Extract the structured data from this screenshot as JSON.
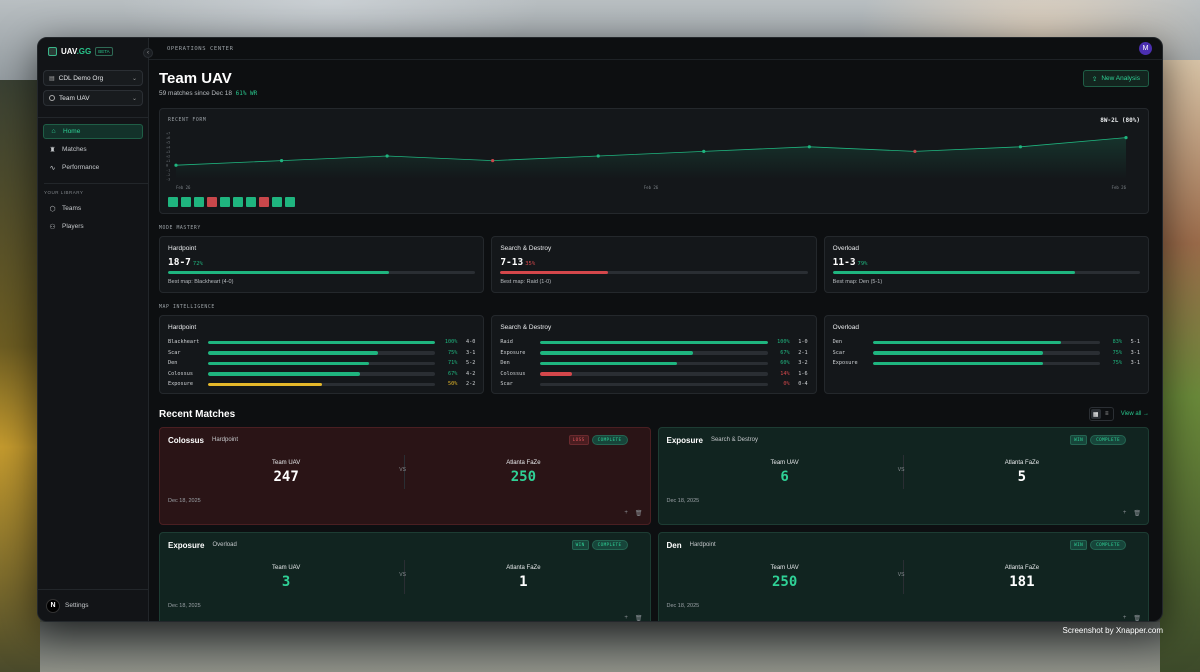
{
  "caption": "Screenshot by Xnapper.com",
  "brand": {
    "name_a": "UAV",
    "name_b": ".GG",
    "beta": "BETA"
  },
  "sidebar": {
    "org_select": "CDL Demo Org",
    "team_select": "Team UAV",
    "nav": [
      {
        "label": "Home",
        "icon": "home-icon"
      },
      {
        "label": "Matches",
        "icon": "trophy-icon"
      },
      {
        "label": "Performance",
        "icon": "pulse-icon"
      }
    ],
    "library_label": "YOUR LIBRARY",
    "library": [
      {
        "label": "Teams",
        "icon": "shield-icon"
      },
      {
        "label": "Players",
        "icon": "users-icon"
      }
    ],
    "settings_label": "Settings",
    "settings_avatar": "N"
  },
  "topbar": {
    "title": "OPERATIONS CENTER",
    "avatar": "M"
  },
  "header": {
    "title": "Team UAV",
    "subtitle": "59 matches since Dec 18",
    "win_rate": "61% WR",
    "new_analysis": "New Analysis"
  },
  "recent_form": {
    "label": "RECENT FORM",
    "record": "8W-2L (80%)",
    "y_ticks": [
      "+7",
      "+6",
      "+5",
      "+4",
      "+3",
      "+2",
      "+1",
      "0",
      "-1",
      "-2",
      "-3"
    ],
    "x_ticks": [
      "Feb 26",
      "Feb 26",
      "Feb 26"
    ],
    "results": [
      "W",
      "W",
      "W",
      "L",
      "W",
      "W",
      "W",
      "L",
      "W",
      "W"
    ],
    "colors": {
      "win": "#1fb57f",
      "loss": "#c9474b"
    }
  },
  "chart_data": {
    "type": "line",
    "title": "",
    "xlabel": "",
    "ylabel": "",
    "x": [
      1,
      2,
      3,
      4,
      5,
      6,
      7,
      8,
      9,
      10
    ],
    "values": [
      0,
      1,
      2,
      1,
      2,
      3,
      4,
      3,
      4,
      6
    ],
    "results": [
      "W",
      "W",
      "W",
      "L",
      "W",
      "W",
      "W",
      "L",
      "W",
      "W"
    ],
    "ylim": [
      -3,
      7
    ],
    "grid": false
  },
  "mode_mastery": {
    "label": "MODE MASTERY",
    "modes": [
      {
        "name": "Hardpoint",
        "record": "18-7",
        "pct": "72%",
        "rate": 72,
        "color": "#1fb57f",
        "best_map": "Best map: Blackheart (4-0)"
      },
      {
        "name": "Search & Destroy",
        "record": "7-13",
        "pct": "35%",
        "rate": 35,
        "color": "#d4474b",
        "best_map": "Best map: Raid (1-0)"
      },
      {
        "name": "Overload",
        "record": "11-3",
        "pct": "79%",
        "rate": 79,
        "color": "#1fb57f",
        "best_map": "Best map: Den (5-1)"
      }
    ]
  },
  "map_intel": {
    "label": "MAP INTELLIGENCE",
    "groups": [
      {
        "mode": "Hardpoint",
        "maps": [
          {
            "name": "Blackheart",
            "pct": "100%",
            "rate": 100,
            "wl": "4-0",
            "color": "#1fb57f"
          },
          {
            "name": "Scar",
            "pct": "75%",
            "rate": 75,
            "wl": "3-1",
            "color": "#1fb57f"
          },
          {
            "name": "Den",
            "pct": "71%",
            "rate": 71,
            "wl": "5-2",
            "color": "#1fb57f"
          },
          {
            "name": "Colossus",
            "pct": "67%",
            "rate": 67,
            "wl": "4-2",
            "color": "#1fb57f"
          },
          {
            "name": "Exposure",
            "pct": "50%",
            "rate": 50,
            "wl": "2-2",
            "color": "#e5b82a"
          }
        ]
      },
      {
        "mode": "Search & Destroy",
        "maps": [
          {
            "name": "Raid",
            "pct": "100%",
            "rate": 100,
            "wl": "1-0",
            "color": "#1fb57f"
          },
          {
            "name": "Exposure",
            "pct": "67%",
            "rate": 67,
            "wl": "2-1",
            "color": "#1fb57f"
          },
          {
            "name": "Den",
            "pct": "60%",
            "rate": 60,
            "wl": "3-2",
            "color": "#1fb57f"
          },
          {
            "name": "Colossus",
            "pct": "14%",
            "rate": 14,
            "wl": "1-6",
            "color": "#d4474b"
          },
          {
            "name": "Scar",
            "pct": "0%",
            "rate": 0,
            "wl": "0-4",
            "color": "#d4474b"
          }
        ]
      },
      {
        "mode": "Overload",
        "maps": [
          {
            "name": "Den",
            "pct": "83%",
            "rate": 83,
            "wl": "5-1",
            "color": "#1fb57f"
          },
          {
            "name": "Scar",
            "pct": "75%",
            "rate": 75,
            "wl": "3-1",
            "color": "#1fb57f"
          },
          {
            "name": "Exposure",
            "pct": "75%",
            "rate": 75,
            "wl": "3-1",
            "color": "#1fb57f"
          }
        ]
      }
    ]
  },
  "recent_matches": {
    "title": "Recent Matches",
    "view_all": "View all →",
    "matches": [
      {
        "map": "Colossus",
        "mode": "Hardpoint",
        "result": "LOSS",
        "status": "COMPLETE",
        "home": "Team UAV",
        "home_score": "247",
        "away": "Atlanta FaZe",
        "away_score": "250",
        "date": "Dec 18, 2025",
        "vs": "VS"
      },
      {
        "map": "Exposure",
        "mode": "Search & Destroy",
        "result": "WIN",
        "status": "COMPLETE",
        "home": "Team UAV",
        "home_score": "6",
        "away": "Atlanta FaZe",
        "away_score": "5",
        "date": "Dec 18, 2025",
        "vs": "VS"
      },
      {
        "map": "Exposure",
        "mode": "Overload",
        "result": "WIN",
        "status": "COMPLETE",
        "home": "Team UAV",
        "home_score": "3",
        "away": "Atlanta FaZe",
        "away_score": "1",
        "date": "Dec 18, 2025",
        "vs": "VS"
      },
      {
        "map": "Den",
        "mode": "Hardpoint",
        "result": "WIN",
        "status": "COMPLETE",
        "home": "Team UAV",
        "home_score": "250",
        "away": "Atlanta FaZe",
        "away_score": "181",
        "date": "Dec 18, 2025",
        "vs": "VS"
      }
    ]
  }
}
